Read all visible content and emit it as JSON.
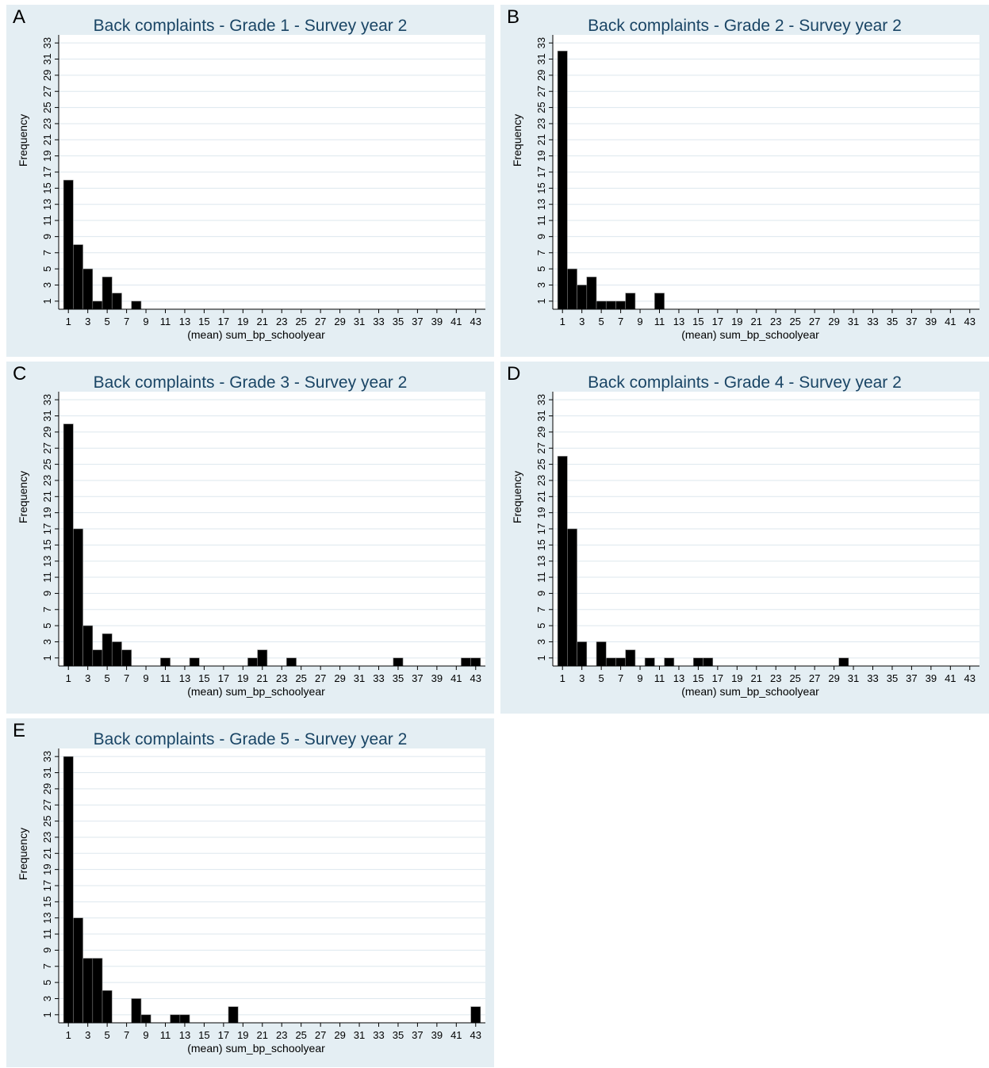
{
  "figure": {
    "colors": {
      "panel_background": "#e4eef3",
      "plot_background": "#ffffff",
      "grid": "#dde7ee",
      "bar_fill": "#000000",
      "bar_outline": "#888888",
      "title_text": "#1a4565"
    }
  },
  "chart_data": [
    {
      "panel_letter": "A",
      "type": "bar",
      "title": "Back complaints - Grade 1 - Survey year 2",
      "xlabel": "(mean) sum_bp_schoolyear",
      "ylabel": "Frequency",
      "xlim": [
        0,
        44
      ],
      "ylim": [
        0,
        34
      ],
      "xticks": [
        1,
        3,
        5,
        7,
        9,
        11,
        13,
        15,
        17,
        19,
        21,
        23,
        25,
        27,
        29,
        31,
        33,
        35,
        37,
        39,
        41,
        43
      ],
      "yticks": [
        1,
        3,
        5,
        7,
        9,
        11,
        13,
        15,
        17,
        19,
        21,
        23,
        25,
        27,
        29,
        31,
        33
      ],
      "grid": true,
      "x": [
        1,
        2,
        3,
        4,
        5,
        6,
        8
      ],
      "values": [
        16,
        8,
        5,
        1,
        4,
        2,
        1
      ]
    },
    {
      "panel_letter": "B",
      "type": "bar",
      "title": "Back complaints - Grade 2 - Survey year 2",
      "xlabel": "(mean) sum_bp_schoolyear",
      "ylabel": "Frequency",
      "xlim": [
        0,
        44
      ],
      "ylim": [
        0,
        34
      ],
      "xticks": [
        1,
        3,
        5,
        7,
        9,
        11,
        13,
        15,
        17,
        19,
        21,
        23,
        25,
        27,
        29,
        31,
        33,
        35,
        37,
        39,
        41,
        43
      ],
      "yticks": [
        1,
        3,
        5,
        7,
        9,
        11,
        13,
        15,
        17,
        19,
        21,
        23,
        25,
        27,
        29,
        31,
        33
      ],
      "grid": true,
      "x": [
        1,
        2,
        3,
        4,
        5,
        6,
        7,
        8,
        11
      ],
      "values": [
        32,
        5,
        3,
        4,
        1,
        1,
        1,
        2,
        2
      ]
    },
    {
      "panel_letter": "C",
      "type": "bar",
      "title": "Back complaints - Grade 3 - Survey year 2",
      "xlabel": "(mean) sum_bp_schoolyear",
      "ylabel": "Frequency",
      "xlim": [
        0,
        44
      ],
      "ylim": [
        0,
        34
      ],
      "xticks": [
        1,
        3,
        5,
        7,
        9,
        11,
        13,
        15,
        17,
        19,
        21,
        23,
        25,
        27,
        29,
        31,
        33,
        35,
        37,
        39,
        41,
        43
      ],
      "yticks": [
        1,
        3,
        5,
        7,
        9,
        11,
        13,
        15,
        17,
        19,
        21,
        23,
        25,
        27,
        29,
        31,
        33
      ],
      "grid": true,
      "x": [
        1,
        2,
        3,
        4,
        5,
        6,
        7,
        11,
        14,
        20,
        21,
        24,
        35,
        42,
        43
      ],
      "values": [
        30,
        17,
        5,
        2,
        4,
        3,
        2,
        1,
        1,
        1,
        2,
        1,
        1,
        1,
        1
      ]
    },
    {
      "panel_letter": "D",
      "type": "bar",
      "title": "Back complaints - Grade 4 - Survey year 2",
      "xlabel": "(mean) sum_bp_schoolyear",
      "ylabel": "Frequency",
      "xlim": [
        0,
        44
      ],
      "ylim": [
        0,
        34
      ],
      "xticks": [
        1,
        3,
        5,
        7,
        9,
        11,
        13,
        15,
        17,
        19,
        21,
        23,
        25,
        27,
        29,
        31,
        33,
        35,
        37,
        39,
        41,
        43
      ],
      "yticks": [
        1,
        3,
        5,
        7,
        9,
        11,
        13,
        15,
        17,
        19,
        21,
        23,
        25,
        27,
        29,
        31,
        33
      ],
      "grid": true,
      "x": [
        1,
        2,
        3,
        5,
        6,
        7,
        8,
        10,
        12,
        15,
        16,
        30
      ],
      "values": [
        26,
        17,
        3,
        3,
        1,
        1,
        2,
        1,
        1,
        1,
        1,
        1
      ]
    },
    {
      "panel_letter": "E",
      "type": "bar",
      "title": "Back complaints - Grade 5 - Survey year 2",
      "xlabel": "(mean) sum_bp_schoolyear",
      "ylabel": "Frequency",
      "xlim": [
        0,
        44
      ],
      "ylim": [
        0,
        34
      ],
      "xticks": [
        1,
        3,
        5,
        7,
        9,
        11,
        13,
        15,
        17,
        19,
        21,
        23,
        25,
        27,
        29,
        31,
        33,
        35,
        37,
        39,
        41,
        43
      ],
      "yticks": [
        1,
        3,
        5,
        7,
        9,
        11,
        13,
        15,
        17,
        19,
        21,
        23,
        25,
        27,
        29,
        31,
        33
      ],
      "grid": true,
      "x": [
        1,
        2,
        3,
        4,
        5,
        8,
        9,
        12,
        13,
        18,
        43
      ],
      "values": [
        33,
        13,
        8,
        8,
        4,
        3,
        1,
        1,
        1,
        2,
        2
      ]
    }
  ]
}
